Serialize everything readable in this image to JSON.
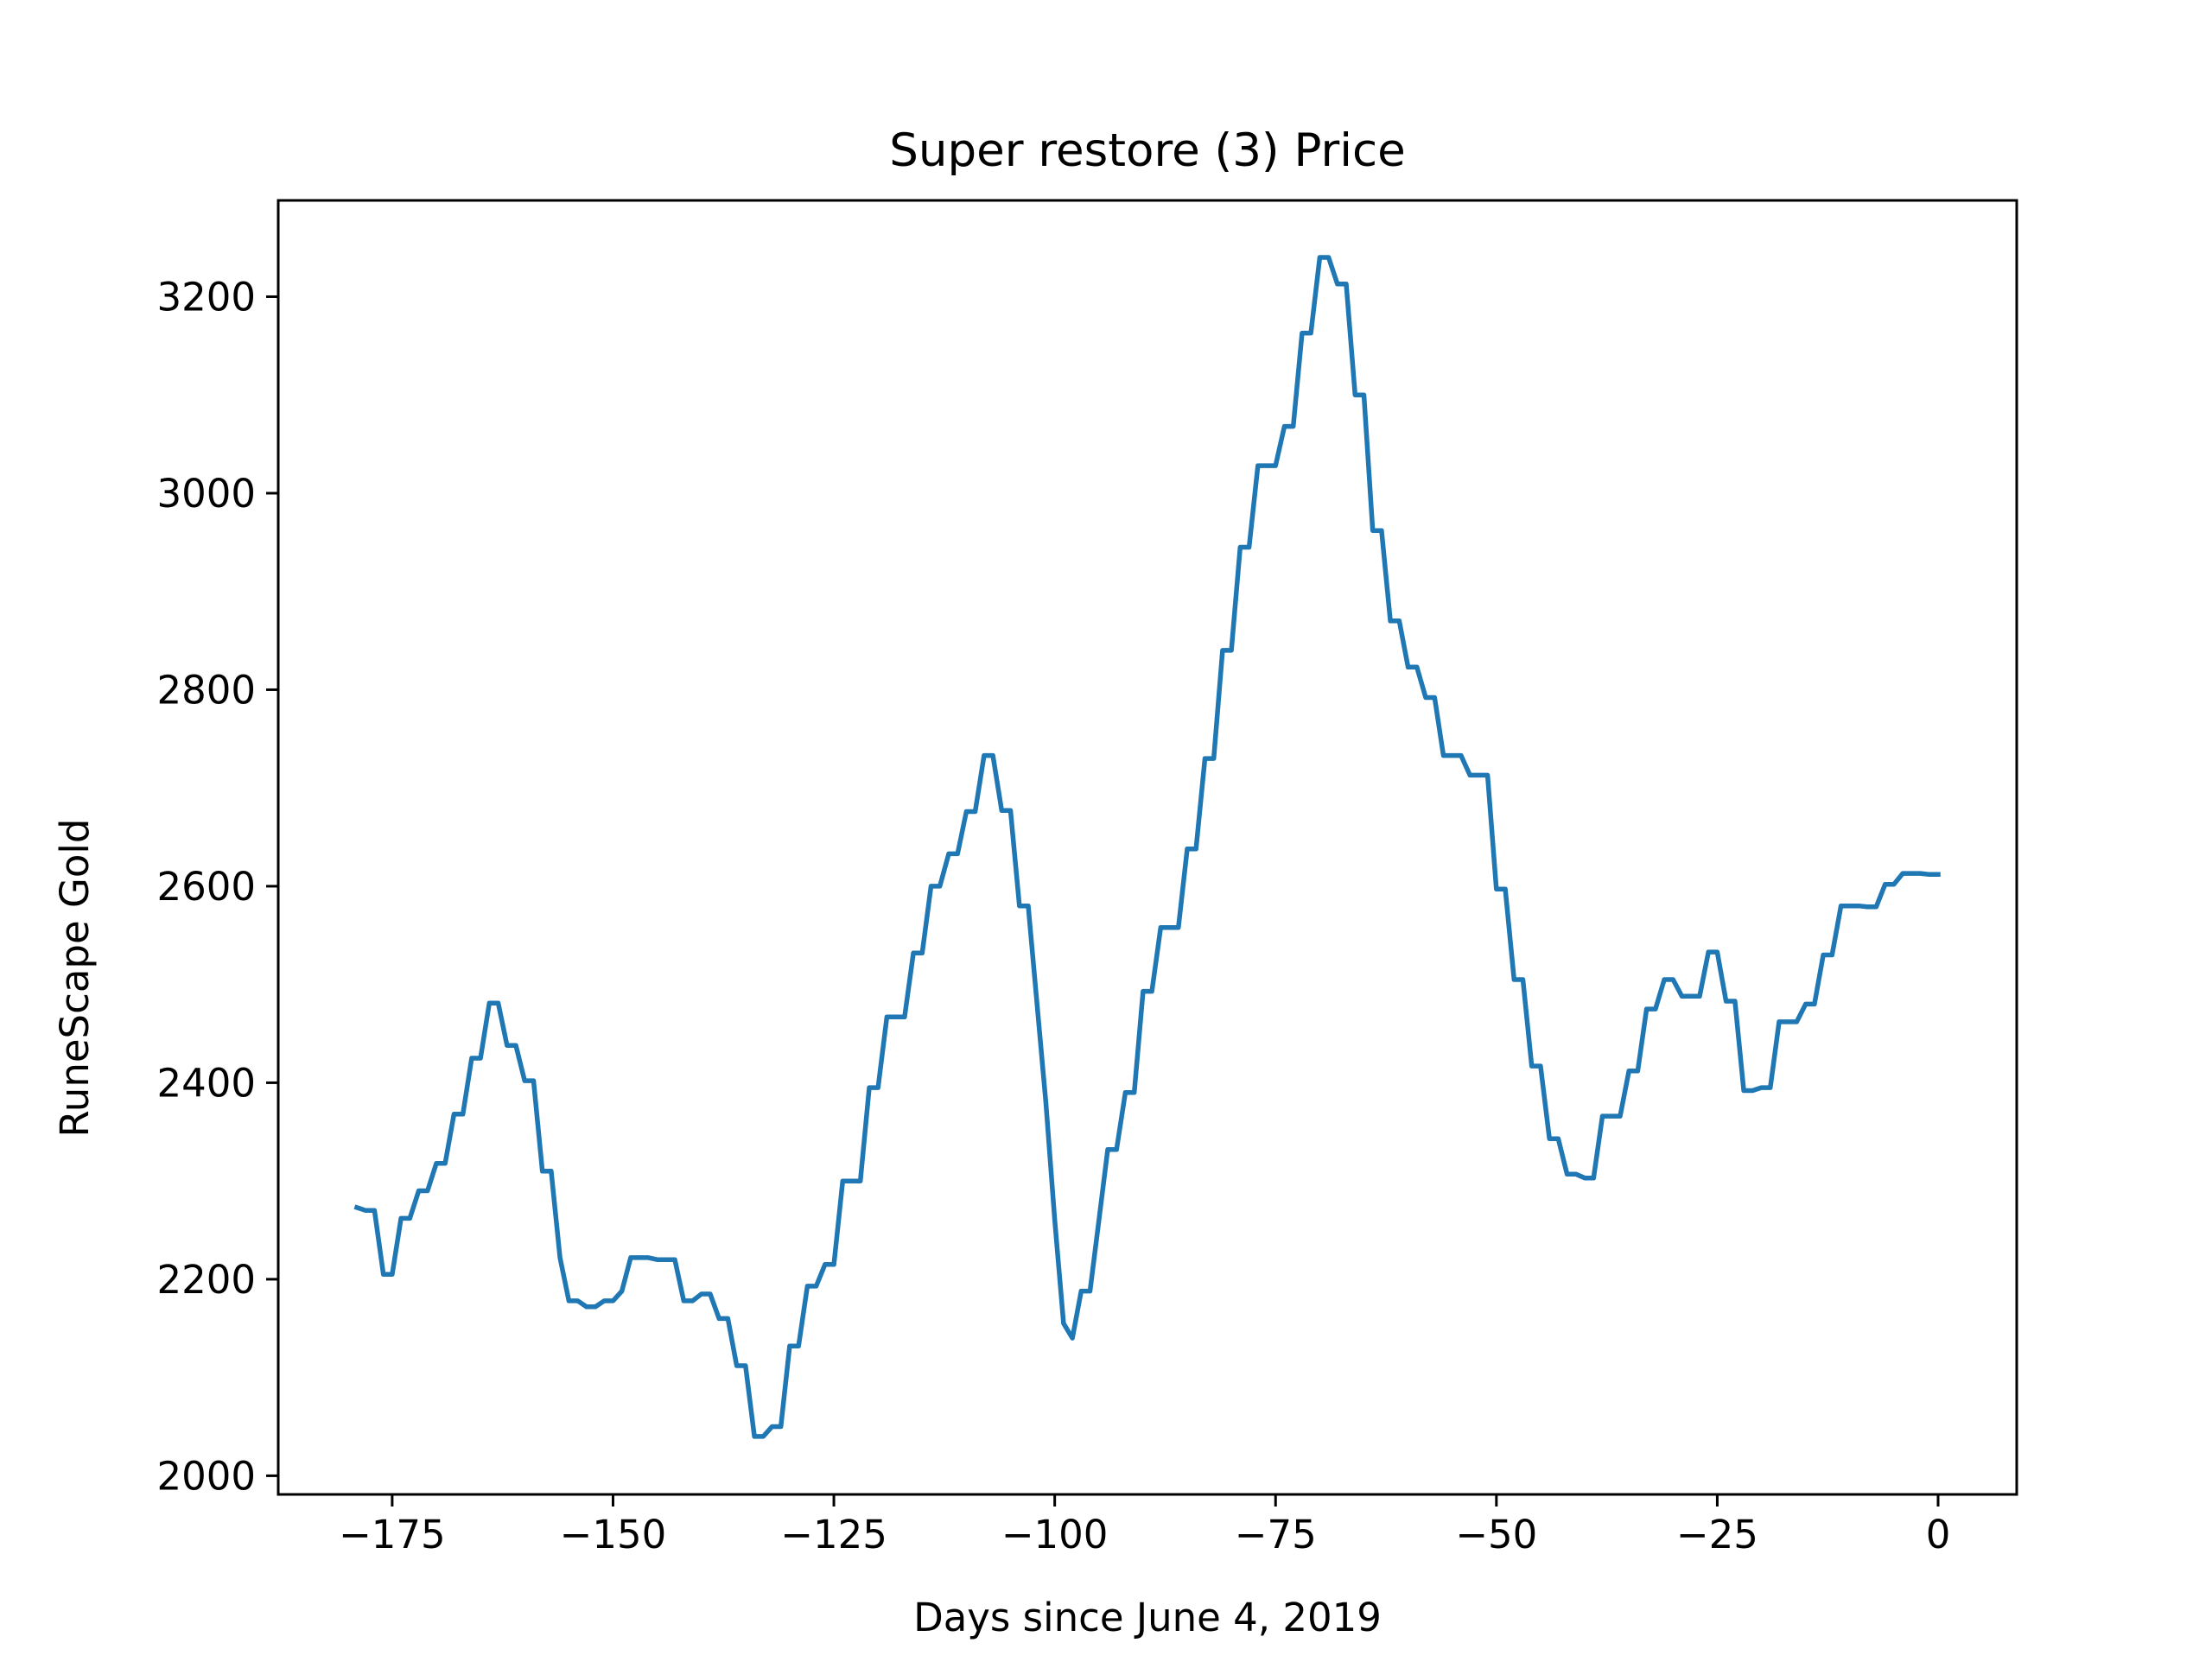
{
  "chart_data": {
    "type": "line",
    "title": "Super restore (3) Price",
    "xlabel": "Days since June 4, 2019",
    "ylabel": "RuneScape Gold",
    "xlim": [
      -187.9,
      8.9
    ],
    "ylim": [
      1981,
      3298
    ],
    "xticks": [
      -175,
      -150,
      -125,
      -100,
      -75,
      -50,
      -25,
      0
    ],
    "xtick_labels": [
      "−175",
      "−150",
      "−125",
      "−100",
      "−75",
      "−50",
      "−25",
      "0"
    ],
    "yticks": [
      2000,
      2200,
      2400,
      2600,
      2800,
      3000,
      3200
    ],
    "ytick_labels": [
      "2000",
      "2200",
      "2400",
      "2600",
      "2800",
      "3000",
      "3200"
    ],
    "grid": false,
    "line_color": "#1f77b4",
    "series": [
      {
        "name": "",
        "x": [
          -179,
          -178,
          -177,
          -176,
          -175,
          -174,
          -173,
          -172,
          -171,
          -170,
          -169,
          -168,
          -167,
          -166,
          -165,
          -164,
          -163,
          -162,
          -161,
          -160,
          -159,
          -158,
          -157,
          -156,
          -155,
          -154,
          -153,
          -152,
          -151,
          -150,
          -149,
          -148,
          -147,
          -146,
          -145,
          -144,
          -143,
          -142,
          -141,
          -140,
          -139,
          -138,
          -137,
          -136,
          -135,
          -134,
          -133,
          -132,
          -131,
          -130,
          -129,
          -128,
          -127,
          -126,
          -125,
          -124,
          -123,
          -122,
          -121,
          -120,
          -119,
          -118,
          -117,
          -116,
          -115,
          -114,
          -113,
          -112,
          -111,
          -110,
          -109,
          -108,
          -107,
          -106,
          -105,
          -104,
          -103,
          -102,
          -101,
          -100,
          -99,
          -98,
          -97,
          -96,
          -95,
          -94,
          -93,
          -92,
          -91,
          -90,
          -89,
          -88,
          -87,
          -86,
          -85,
          -84,
          -83,
          -82,
          -81,
          -80,
          -79,
          -78,
          -77,
          -76,
          -75,
          -74,
          -73,
          -72,
          -71,
          -70,
          -69,
          -68,
          -67,
          -66,
          -65,
          -64,
          -63,
          -62,
          -61,
          -60,
          -59,
          -58,
          -57,
          -56,
          -55,
          -54,
          -53,
          -52,
          -51,
          -50,
          -49,
          -48,
          -47,
          -46,
          -45,
          -44,
          -43,
          -42,
          -41,
          -40,
          -39,
          -38,
          -37,
          -36,
          -35,
          -34,
          -33,
          -32,
          -31,
          -30,
          -29,
          -28,
          -27,
          -26,
          -25,
          -24,
          -23,
          -22,
          -21,
          -20,
          -19,
          -18,
          -17,
          -16,
          -15,
          -14,
          -13,
          -12,
          -11,
          -10,
          -9,
          -8,
          -7,
          -6,
          -5,
          -4,
          -3,
          -2,
          -1,
          0
        ],
        "y": [
          2273,
          2270,
          2270,
          2205,
          2205,
          2262,
          2262,
          2290,
          2290,
          2318,
          2318,
          2368,
          2368,
          2425,
          2425,
          2481,
          2481,
          2438,
          2438,
          2402,
          2402,
          2310,
          2310,
          2222,
          2178,
          2178,
          2172,
          2172,
          2178,
          2178,
          2188,
          2222,
          2222,
          2222,
          2220,
          2220,
          2220,
          2178,
          2178,
          2185,
          2185,
          2160,
          2160,
          2112,
          2112,
          2040,
          2040,
          2050,
          2050,
          2132,
          2132,
          2193,
          2193,
          2215,
          2215,
          2300,
          2300,
          2300,
          2395,
          2395,
          2467,
          2467,
          2467,
          2532,
          2532,
          2600,
          2600,
          2633,
          2633,
          2676,
          2676,
          2733,
          2733,
          2677,
          2677,
          2580,
          2580,
          2480,
          2380,
          2260,
          2155,
          2140,
          2188,
          2188,
          2260,
          2332,
          2332,
          2390,
          2390,
          2493,
          2493,
          2558,
          2558,
          2558,
          2638,
          2638,
          2730,
          2730,
          2840,
          2840,
          2945,
          2945,
          3028,
          3028,
          3028,
          3068,
          3068,
          3163,
          3163,
          3240,
          3240,
          3213,
          3213,
          3100,
          3100,
          2962,
          2962,
          2870,
          2870,
          2823,
          2823,
          2792,
          2792,
          2733,
          2733,
          2733,
          2713,
          2713,
          2713,
          2597,
          2597,
          2505,
          2505,
          2417,
          2417,
          2343,
          2343,
          2307,
          2307,
          2303,
          2303,
          2366,
          2366,
          2366,
          2412,
          2412,
          2475,
          2475,
          2505,
          2505,
          2488,
          2488,
          2488,
          2533,
          2533,
          2483,
          2483,
          2392,
          2392,
          2395,
          2395,
          2462,
          2462,
          2462,
          2480,
          2480,
          2530,
          2530,
          2580,
          2580,
          2580,
          2579,
          2579,
          2602,
          2602,
          2613,
          2613,
          2613,
          2612,
          2612
        ]
      }
    ]
  }
}
